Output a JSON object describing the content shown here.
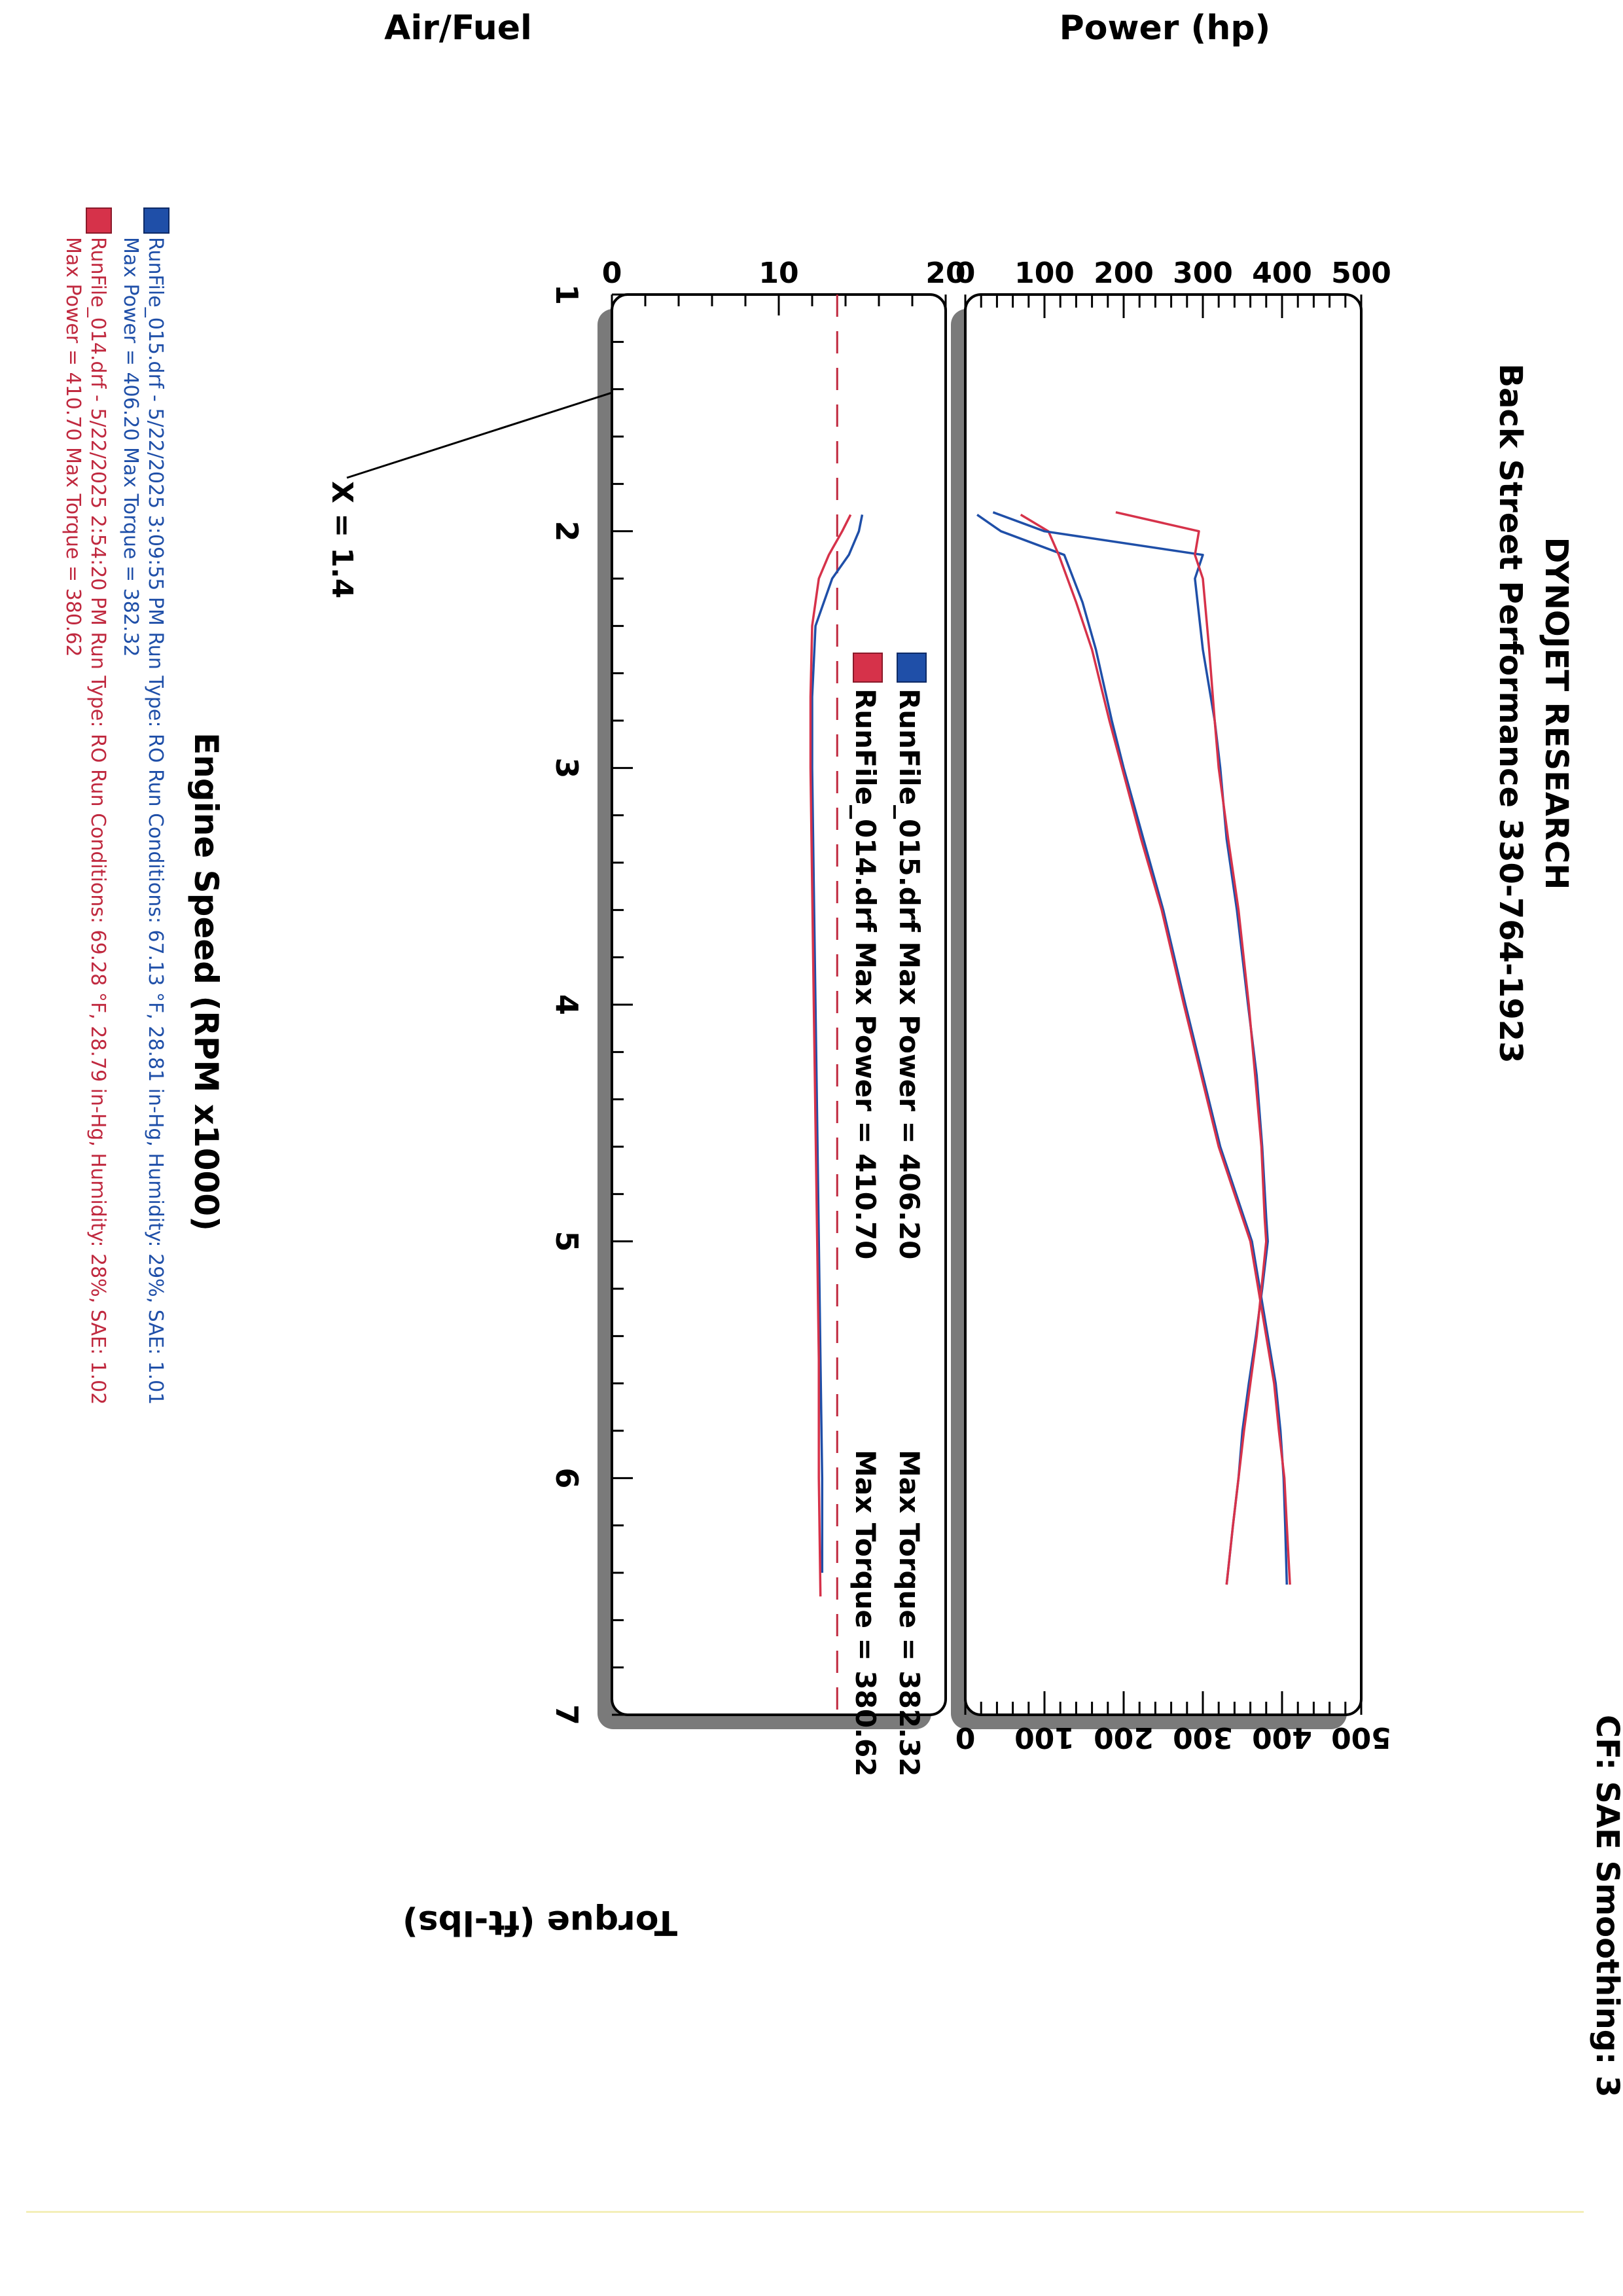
{
  "header": {
    "company": "DYNOJET RESEARCH",
    "shop": "Back Street Performance 330-764-1923",
    "cf_label": "CF: SAE  Smoothing: 3"
  },
  "colors": {
    "run015": "#1f4fa8",
    "run014": "#d6324a",
    "frame": "#000000",
    "shadow": "#7a7a7a",
    "grid": "#000000",
    "af_target": "#c0293f"
  },
  "legend_inset": {
    "line1": "RunFile_015.drf Max Power = 406.20",
    "line1_torque": "Max Torque = 382.32",
    "line2": "RunFile_014.drf Max Power = 410.70",
    "line2_torque": "Max Torque = 380.62"
  },
  "footer": {
    "run015_line1": "RunFile_015.drf - 5/22/2025 3:09:55 PM  Run Type: RO  Run Conditions: 67.13 °F, 28.81 in-Hg,  Humidity:  29%, SAE: 1.01",
    "run015_line2": "Max Power = 406.20  Max Torque = 382.32",
    "run014_line1": "RunFile_014.drf - 5/22/2025 2:54:20 PM  Run Type: RO  Run Conditions: 69.28 °F, 28.79 in-Hg,  Humidity:  28%, SAE: 1.02",
    "run014_line2": "Max Power = 410.70  Max Torque = 380.62"
  },
  "cursor_label": "X = 1.4",
  "chart_data": [
    {
      "type": "line",
      "title": "",
      "xlabel": "Engine Speed (RPM x1000)",
      "ylabel": "Power (hp)",
      "y2label": "Torque (ft-lbs)",
      "xlim": [
        1,
        7
      ],
      "ylim": [
        0,
        500
      ],
      "y2lim": [
        0,
        500
      ],
      "xticks": [
        "1",
        "2",
        "3",
        "4",
        "5",
        "6",
        "7"
      ],
      "yticks": [
        "0",
        "100",
        "200",
        "300",
        "400",
        "500"
      ],
      "y2ticks": [
        "0",
        "100",
        "200",
        "300",
        "400",
        "500"
      ],
      "grid": true,
      "cursor_x": 1.4,
      "series": [
        {
          "name": "RunFile_015.drf",
          "quantity": "power",
          "color": "#1f4fa8",
          "x": [
            1.93,
            2.0,
            2.1,
            2.3,
            2.5,
            2.8,
            3.0,
            3.3,
            3.6,
            4.0,
            4.3,
            4.6,
            4.8,
            5.0,
            5.2,
            5.4,
            5.6,
            5.8,
            6.0,
            6.2,
            6.45
          ],
          "y": [
            15,
            45,
            125,
            148,
            165,
            185,
            200,
            225,
            250,
            278,
            300,
            322,
            342,
            362,
            372,
            382,
            392,
            398,
            402,
            404,
            406
          ]
        },
        {
          "name": "RunFile_014.drf",
          "quantity": "power",
          "color": "#d6324a",
          "x": [
            1.93,
            2.0,
            2.1,
            2.3,
            2.5,
            2.8,
            3.0,
            3.3,
            3.6,
            4.0,
            4.3,
            4.6,
            4.8,
            5.0,
            5.2,
            5.4,
            5.6,
            5.8,
            6.0,
            6.2,
            6.45
          ],
          "y": [
            70,
            105,
            118,
            140,
            160,
            182,
            198,
            222,
            248,
            276,
            298,
            320,
            340,
            360,
            370,
            380,
            390,
            396,
            403,
            406,
            410
          ]
        },
        {
          "name": "RunFile_015.drf",
          "quantity": "torque",
          "color": "#1f4fa8",
          "x": [
            1.92,
            2.0,
            2.1,
            2.2,
            2.5,
            2.8,
            3.0,
            3.3,
            3.6,
            4.0,
            4.3,
            4.6,
            4.9,
            5.0,
            5.2,
            5.4,
            5.6,
            5.8,
            6.0,
            6.2,
            6.45
          ],
          "y": [
            35,
            100,
            300,
            290,
            300,
            315,
            322,
            330,
            343,
            357,
            368,
            375,
            380,
            382,
            375,
            367,
            358,
            350,
            345,
            338,
            330
          ]
        },
        {
          "name": "RunFile_014.drf",
          "quantity": "torque",
          "color": "#d6324a",
          "x": [
            1.92,
            2.0,
            2.1,
            2.2,
            2.5,
            2.8,
            3.0,
            3.3,
            3.6,
            4.0,
            4.3,
            4.6,
            4.9,
            5.0,
            5.2,
            5.4,
            5.6,
            5.8,
            6.0,
            6.2,
            6.45
          ],
          "y": [
            190,
            295,
            290,
            300,
            308,
            315,
            320,
            332,
            345,
            358,
            366,
            374,
            378,
            380,
            374,
            368,
            360,
            352,
            345,
            338,
            330
          ]
        }
      ]
    },
    {
      "type": "line",
      "title": "",
      "xlabel": "Engine Speed (RPM x1000)",
      "ylabel": "Air/Fuel",
      "xlim": [
        1,
        7
      ],
      "ylim": [
        0,
        20
      ],
      "yticks": [
        "0",
        "10",
        "20"
      ],
      "grid": true,
      "target_afr": 13.5,
      "series": [
        {
          "name": "RunFile_015.drf",
          "color": "#1f4fa8",
          "x": [
            1.93,
            2.0,
            2.1,
            2.2,
            2.4,
            2.7,
            3.0,
            3.5,
            4.0,
            4.5,
            5.0,
            5.5,
            6.0,
            6.4
          ],
          "y": [
            15.0,
            14.8,
            14.2,
            13.2,
            12.2,
            12.0,
            12.0,
            12.1,
            12.2,
            12.3,
            12.4,
            12.5,
            12.6,
            12.6
          ]
        },
        {
          "name": "RunFile_014.drf",
          "color": "#d6324a",
          "x": [
            1.93,
            2.0,
            2.1,
            2.2,
            2.4,
            2.7,
            3.0,
            3.5,
            4.0,
            4.5,
            5.0,
            5.5,
            6.0,
            6.5
          ],
          "y": [
            14.3,
            13.8,
            13.0,
            12.4,
            12.0,
            11.9,
            11.9,
            12.0,
            12.1,
            12.2,
            12.3,
            12.4,
            12.4,
            12.5
          ]
        }
      ]
    }
  ]
}
